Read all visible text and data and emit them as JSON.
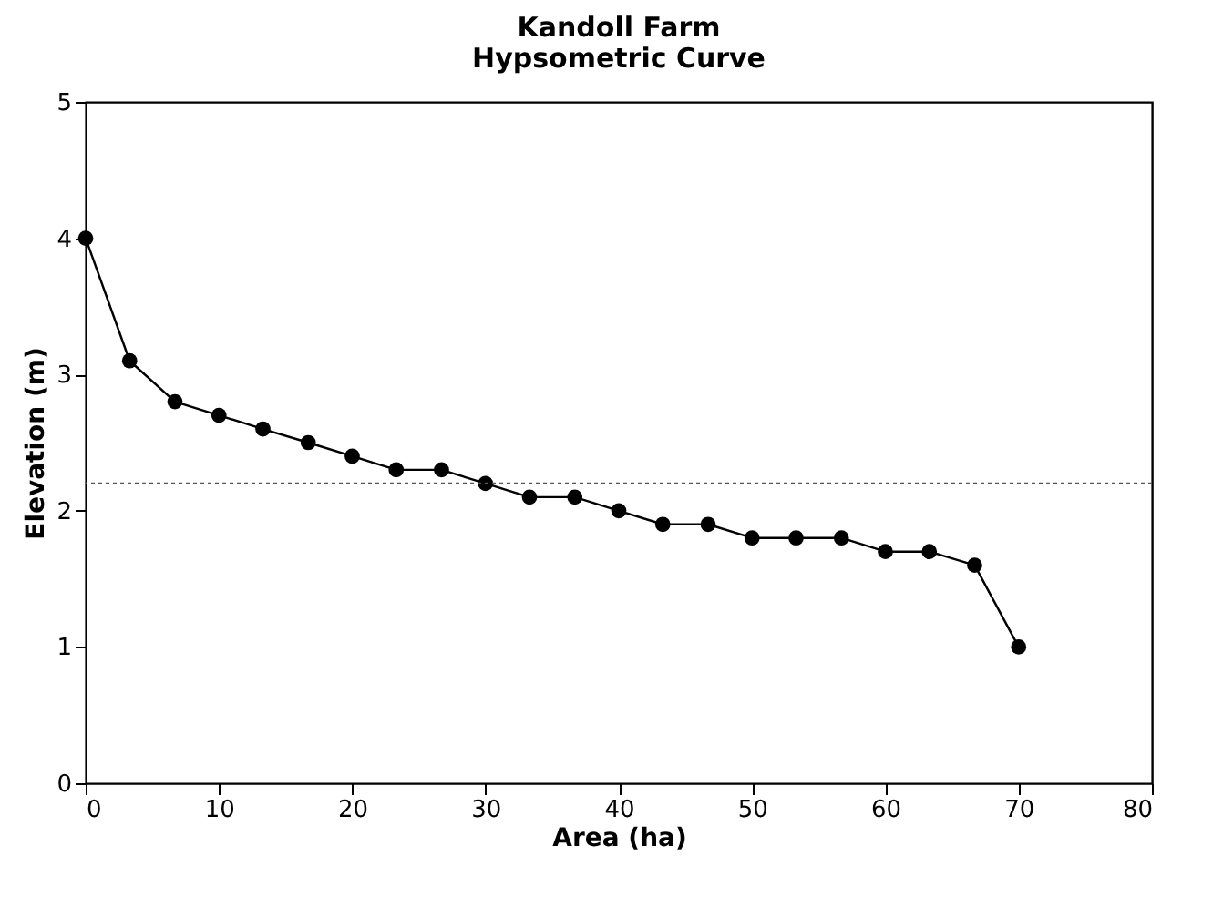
{
  "chart_data": {
    "type": "line",
    "title": "Kandoll Farm\nHypsometric Curve",
    "xlabel": "Area (ha)",
    "ylabel": "Elevation (m)",
    "x": [
      0,
      3.3,
      6.7,
      10,
      13.3,
      16.7,
      20,
      23.3,
      26.7,
      30,
      33.3,
      36.7,
      40,
      43.3,
      46.7,
      50,
      53.3,
      56.7,
      60,
      63.3,
      66.7,
      70
    ],
    "series": [
      {
        "color": "#000000",
        "values": [
          4.0,
          3.1,
          2.8,
          2.7,
          2.6,
          2.5,
          2.4,
          2.3,
          2.3,
          2.2,
          2.1,
          2.1,
          2.0,
          1.9,
          1.9,
          1.8,
          1.8,
          1.8,
          1.7,
          1.7,
          1.6,
          1.0
        ]
      }
    ],
    "xlim": [
      0,
      80
    ],
    "xticks": [
      0,
      10,
      20,
      30,
      40,
      50,
      60,
      70,
      80
    ],
    "ylim": [
      0,
      5
    ],
    "yticks": [
      0,
      1,
      2,
      3,
      4,
      5
    ],
    "ref_lines": [
      {
        "axis": "y",
        "value": 2.2,
        "color": "#555555",
        "line_style": "dotted"
      }
    ],
    "grid": false,
    "marker": "circle",
    "line_style": "solid"
  }
}
